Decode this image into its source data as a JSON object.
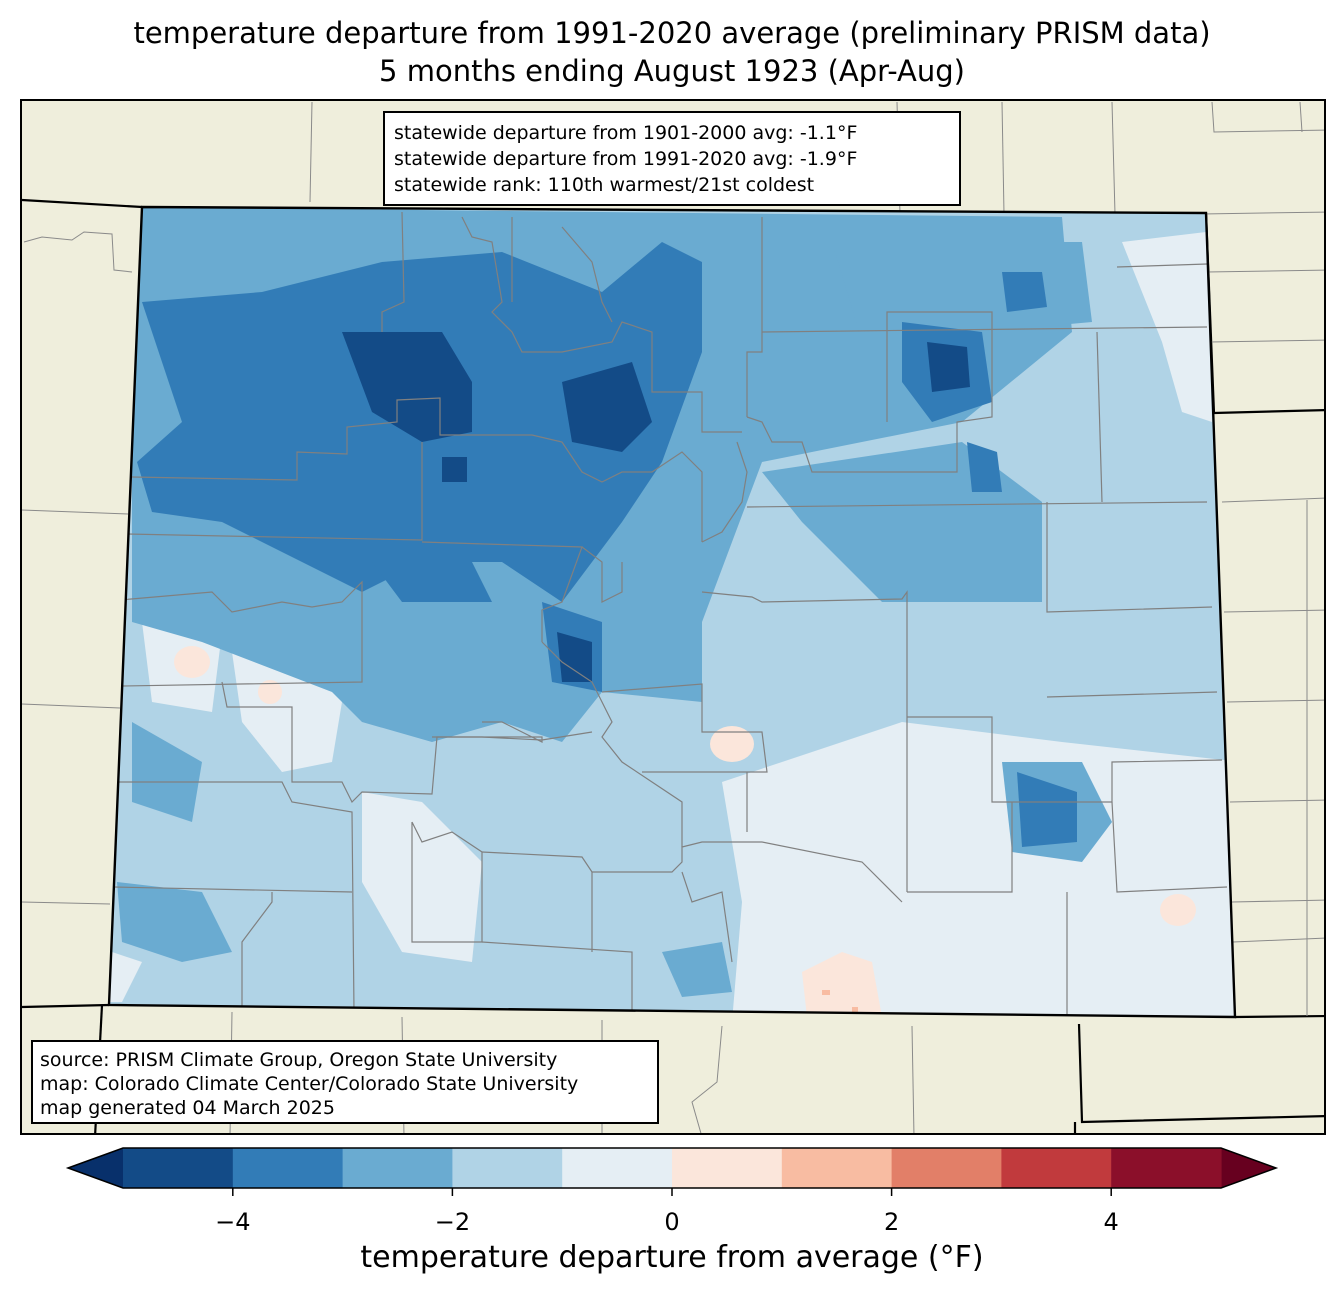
{
  "title": {
    "line1": "temperature departure from 1991-2020 average (preliminary PRISM data)",
    "line2": "5 months ending August 1923 (Apr-Aug)"
  },
  "stats": {
    "line1": "statewide departure from 1901-2000 avg: -1.1°F",
    "line2": "statewide departure from 1991-2020 avg: -1.9°F",
    "line3": "statewide rank: 110th warmest/21st coldest"
  },
  "source": {
    "line1": "source: PRISM Climate Group, Oregon State University",
    "line2": "map: Colorado Climate Center/Colorado State University",
    "line3": "map generated 04 March 2025"
  },
  "colorbar": {
    "label": "temperature departure from average (°F)",
    "min": -5,
    "max": 5,
    "bins": [
      {
        "from": -5,
        "to": -4,
        "color": "#134b87"
      },
      {
        "from": -4,
        "to": -3,
        "color": "#327cb7"
      },
      {
        "from": -3,
        "to": -2,
        "color": "#6aabd1"
      },
      {
        "from": -2,
        "to": -1,
        "color": "#b0d3e6"
      },
      {
        "from": -1,
        "to": 0,
        "color": "#e5eef4"
      },
      {
        "from": 0,
        "to": 1,
        "color": "#fbe6db"
      },
      {
        "from": 1,
        "to": 2,
        "color": "#f8bca2"
      },
      {
        "from": 2,
        "to": 3,
        "color": "#e27f68"
      },
      {
        "from": 3,
        "to": 4,
        "color": "#c13a3d"
      },
      {
        "from": 4,
        "to": 5,
        "color": "#8b0f2a"
      }
    ],
    "under_color": "#08306b",
    "over_color": "#67001f",
    "ticks": [
      {
        "value": -4,
        "label": "−4"
      },
      {
        "value": -2,
        "label": "−2"
      },
      {
        "value": 0,
        "label": "0"
      },
      {
        "value": 2,
        "label": "2"
      },
      {
        "value": 4,
        "label": "4"
      }
    ]
  },
  "colors": {
    "land": "#efeedc",
    "state_border": "#000000",
    "county_border": "#808080"
  }
}
